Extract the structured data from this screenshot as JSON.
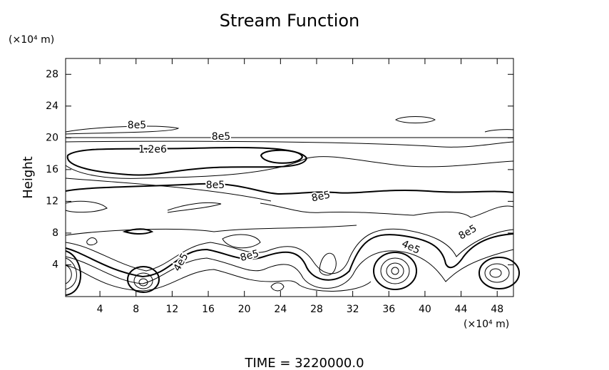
{
  "chart_data": {
    "type": "contour",
    "title": "Stream Function",
    "ylabel": "Height",
    "yunit": "(×10⁴ m)",
    "xunit": "(×10⁴ m)",
    "footer": "TIME = 3220000.0",
    "xlim": [
      0.2,
      49.8
    ],
    "ylim": [
      0,
      30
    ],
    "xticks": [
      4,
      8,
      12,
      16,
      20,
      24,
      28,
      32,
      36,
      40,
      44,
      48
    ],
    "yticks": [
      4,
      8,
      12,
      16,
      20,
      24,
      28
    ],
    "annotations": [
      "8e5",
      "8e5",
      "1.2e6",
      "8e5",
      "8e5",
      "8e5",
      "8e5",
      "4e5",
      "4e5"
    ]
  }
}
